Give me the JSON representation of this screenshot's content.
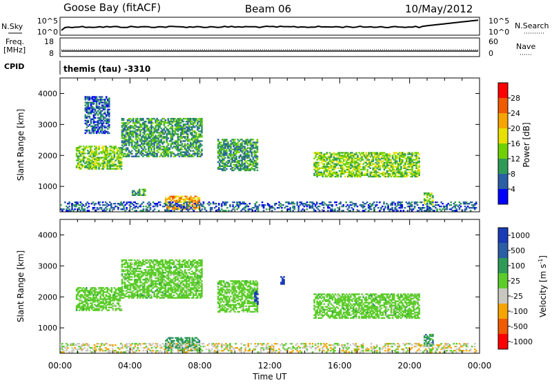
{
  "header": {
    "station": "Goose Bay (fitACF)",
    "beam": "Beam 06",
    "date": "10/May/2012"
  },
  "top_panels": {
    "nsky_label": "N.Sky",
    "nsky_ticks": [
      "10^5",
      "10^0"
    ],
    "nsearch_label": "N.Search",
    "nsearch_ticks": [
      "10^5",
      "10^0"
    ],
    "freq_label": "Freq.",
    "freq_unit": "[MHz]",
    "freq_ticks": [
      "18",
      "8"
    ],
    "nave_label": "Nave",
    "nave_ticks": [
      "60",
      "0"
    ],
    "cpid_label": "CPID",
    "cpid_value": "themis (tau) -3310"
  },
  "chart_data": [
    {
      "type": "heatmap",
      "name": "power",
      "ylabel": "Slant Range [km]",
      "yticks": [
        "4000",
        "3000",
        "2000",
        "1000"
      ],
      "ylim": [
        180,
        4500
      ],
      "xlim": [
        0,
        24
      ],
      "colorbar": {
        "label": "Power [dB]",
        "ticks": [
          "28",
          "24",
          "20",
          "16",
          "12",
          "8",
          "4"
        ],
        "colors": [
          "#ff0000",
          "#f05a00",
          "#f6a400",
          "#e8e000",
          "#6fd200",
          "#2f9a57",
          "#2a5fa6",
          "#0000ff"
        ]
      },
      "regions": [
        {
          "x0": 0.9,
          "x1": 3.5,
          "y0": 1550,
          "y1": 2300,
          "level": 3
        },
        {
          "x0": 3.5,
          "x1": 8.1,
          "y0": 1950,
          "y1": 3200,
          "level": 2
        },
        {
          "x0": 9.0,
          "x1": 11.3,
          "y0": 1500,
          "y1": 2500,
          "level": 2
        },
        {
          "x0": 14.5,
          "x1": 20.5,
          "y0": 1300,
          "y1": 2100,
          "level": 3
        },
        {
          "x0": 6.0,
          "x1": 8.0,
          "y0": 250,
          "y1": 700,
          "level": 5
        },
        {
          "x0": 4.1,
          "x1": 4.9,
          "y0": 700,
          "y1": 900,
          "level": 2
        },
        {
          "x0": 20.8,
          "x1": 21.3,
          "y0": 400,
          "y1": 800,
          "level": 3
        },
        {
          "x0": 1.4,
          "x1": 2.8,
          "y0": 2700,
          "y1": 3900,
          "level": 1
        },
        {
          "x0": 0.0,
          "x1": 23.8,
          "y0": 200,
          "y1": 500,
          "level": 1
        }
      ]
    },
    {
      "type": "heatmap",
      "name": "velocity",
      "ylabel": "Slant Range [km]",
      "yticks": [
        "4000",
        "3000",
        "2000",
        "1000"
      ],
      "ylim": [
        180,
        4500
      ],
      "xlim": [
        0,
        24
      ],
      "xticks": [
        "00:00",
        "04:00",
        "08:00",
        "12:00",
        "16:00",
        "20:00",
        "00:00"
      ],
      "xlabel": "Time UT",
      "colorbar": {
        "label": "Velocity [m s",
        "label_sup": "-1",
        "label_end": "]",
        "ticks": [
          "1000",
          "500",
          "100",
          "25",
          "-25",
          "-100",
          "-500",
          "-1000"
        ],
        "colors": [
          "#1a3bb5",
          "#2a5fa6",
          "#2f9a57",
          "#5ccc2a",
          "#c8c8c0",
          "#f6a400",
          "#f05a00",
          "#ff0000"
        ]
      },
      "regions": [
        {
          "x0": 0.9,
          "x1": 3.5,
          "y0": 1550,
          "y1": 2300,
          "level": 4
        },
        {
          "x0": 3.5,
          "x1": 8.1,
          "y0": 1950,
          "y1": 3200,
          "level": 4
        },
        {
          "x0": 9.0,
          "x1": 11.3,
          "y0": 1500,
          "y1": 2500,
          "level": 4
        },
        {
          "x0": 14.5,
          "x1": 20.5,
          "y0": 1300,
          "y1": 2100,
          "level": 4
        },
        {
          "x0": 6.0,
          "x1": 8.0,
          "y0": 250,
          "y1": 700,
          "level": 5
        },
        {
          "x0": 12.6,
          "x1": 12.8,
          "y0": 2400,
          "y1": 2650,
          "level": 7
        },
        {
          "x0": 11.1,
          "x1": 11.3,
          "y0": 1750,
          "y1": 2200,
          "level": 7
        },
        {
          "x0": 20.8,
          "x1": 21.3,
          "y0": 400,
          "y1": 800,
          "level": 5
        },
        {
          "x0": 0.0,
          "x1": 23.8,
          "y0": 200,
          "y1": 500,
          "level": 3
        }
      ]
    }
  ]
}
